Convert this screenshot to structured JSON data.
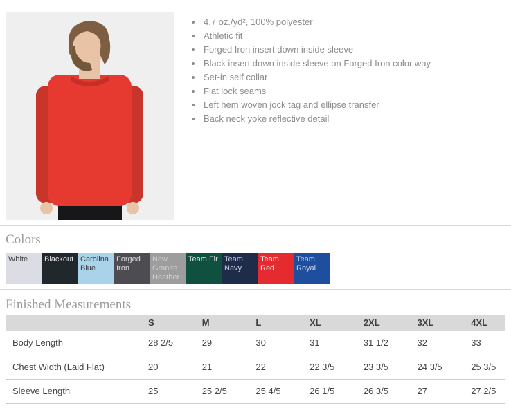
{
  "illustration": {
    "bg": "#f0eff0",
    "shirt": "#e63a31",
    "shirt_shadow": "#c9352b",
    "collar": "#c42f27",
    "skin": "#e9c3a6",
    "hair": "#7d5e42",
    "beard": "#73573b",
    "pants": "#17171a"
  },
  "product": {
    "features": [
      "4.7 oz./yd², 100% polyester",
      "Athletic fit",
      "Forged Iron insert down inside sleeve",
      "Black insert down inside sleeve on Forged Iron color way",
      "Set-in self collar",
      "Flat lock seams",
      "Left hem woven jock tag and ellipse transfer",
      "Back neck yoke reflective detail"
    ]
  },
  "colors": {
    "heading": "Colors",
    "swatches": [
      {
        "label": "White",
        "bg": "#dcdde4",
        "text": "#3c3c3c"
      },
      {
        "label": "Blackout",
        "bg": "#20282b",
        "text": "#e6e6e6"
      },
      {
        "label": "Carolina Blue",
        "bg": "#a9d3e9",
        "text": "#3c3c3c"
      },
      {
        "label": "Forged Iron",
        "bg": "#4d4c51",
        "text": "#dadada"
      },
      {
        "label": "New Granite Heather",
        "bg": "#9d9d9d",
        "text": "#cfcfcf"
      },
      {
        "label": "Team Fir",
        "bg": "#10503e",
        "text": "#e6e6e6"
      },
      {
        "label": "Team Navy",
        "bg": "#1e2c49",
        "text": "#ccd4e2"
      },
      {
        "label": "Team Red",
        "bg": "#e62b30",
        "text": "#ffffff"
      },
      {
        "label": "Team Royal",
        "bg": "#1d4f9e",
        "text": "#ccd4e2"
      }
    ]
  },
  "measurements": {
    "heading": "Finished Measurements",
    "columns": [
      "S",
      "M",
      "L",
      "XL",
      "2XL",
      "3XL",
      "4XL"
    ],
    "rows": [
      {
        "label": "Body Length",
        "values": [
          "28 2/5",
          "29",
          "30",
          "31",
          "31 1/2",
          "32",
          "33"
        ]
      },
      {
        "label": "Chest Width (Laid Flat)",
        "values": [
          "20",
          "21",
          "22",
          "22 3/5",
          "23 3/5",
          "24 3/5",
          "25 3/5"
        ]
      },
      {
        "label": "Sleeve Length",
        "values": [
          "25",
          "25 2/5",
          "25 4/5",
          "26 1/5",
          "26 3/5",
          "27",
          "27 2/5"
        ]
      }
    ]
  }
}
